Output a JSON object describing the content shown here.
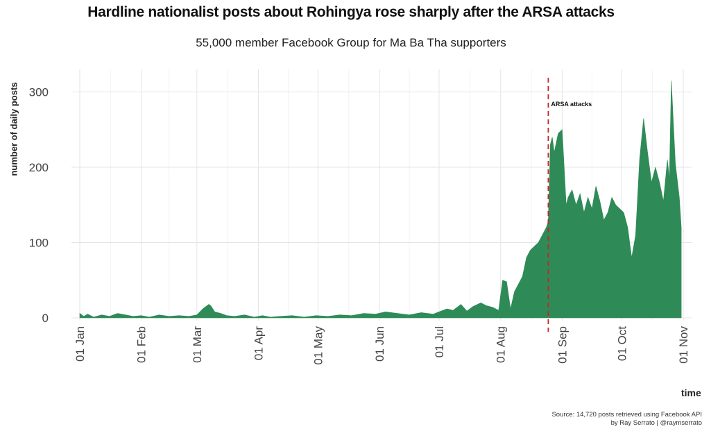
{
  "chart_data": {
    "type": "area",
    "title": "Hardline nationalist posts about Rohingya rose sharply after the ARSA attacks",
    "subtitle": "55,000 member Facebook Group for Ma Ba Tha supporters",
    "xlabel": "time",
    "ylabel": "number of daily posts",
    "caption_line1": "Source: 14,720 posts retrieved using Facebook API",
    "caption_line2": "by Ray Serrato | @raymserrato",
    "xlim": [
      "2017-01-01",
      "2017-11-01"
    ],
    "ylim": [
      0,
      330
    ],
    "grid": true,
    "fill_color": "#2e8b57",
    "annotation_color": "#cc2222",
    "y_ticks": [
      0,
      100,
      200,
      300
    ],
    "x_ticks": [
      {
        "date": "2017-01-01",
        "label": "01 Jan"
      },
      {
        "date": "2017-02-01",
        "label": "01 Feb"
      },
      {
        "date": "2017-03-01",
        "label": "01 Mar"
      },
      {
        "date": "2017-04-01",
        "label": "01 Apr"
      },
      {
        "date": "2017-05-01",
        "label": "01 May"
      },
      {
        "date": "2017-06-01",
        "label": "01 Jun"
      },
      {
        "date": "2017-07-01",
        "label": "01 Jul"
      },
      {
        "date": "2017-08-01",
        "label": "01 Aug"
      },
      {
        "date": "2017-09-01",
        "label": "01 Sep"
      },
      {
        "date": "2017-10-01",
        "label": "01 Oct"
      },
      {
        "date": "2017-11-01",
        "label": "01 Nov"
      }
    ],
    "annotation": {
      "date": "2017-08-25",
      "label": "ARSA attacks"
    },
    "series": [
      {
        "x": [
          "2017-01-01",
          "2017-01-03",
          "2017-01-05",
          "2017-01-08",
          "2017-01-12",
          "2017-01-16",
          "2017-01-20",
          "2017-01-24",
          "2017-01-28",
          "2017-02-01",
          "2017-02-05",
          "2017-02-10",
          "2017-02-15",
          "2017-02-20",
          "2017-02-25",
          "2017-03-01",
          "2017-03-04",
          "2017-03-07",
          "2017-03-08",
          "2017-03-10",
          "2017-03-13",
          "2017-03-16",
          "2017-03-20",
          "2017-03-25",
          "2017-03-30",
          "2017-04-03",
          "2017-04-07",
          "2017-04-12",
          "2017-04-18",
          "2017-04-24",
          "2017-04-30",
          "2017-05-06",
          "2017-05-12",
          "2017-05-18",
          "2017-05-24",
          "2017-05-30",
          "2017-06-04",
          "2017-06-10",
          "2017-06-16",
          "2017-06-22",
          "2017-06-28",
          "2017-07-01",
          "2017-07-05",
          "2017-07-08",
          "2017-07-12",
          "2017-07-15",
          "2017-07-18",
          "2017-07-22",
          "2017-07-25",
          "2017-07-28",
          "2017-07-31",
          "2017-08-02",
          "2017-08-04",
          "2017-08-06",
          "2017-08-08",
          "2017-08-10",
          "2017-08-12",
          "2017-08-14",
          "2017-08-16",
          "2017-08-18",
          "2017-08-20",
          "2017-08-22",
          "2017-08-24",
          "2017-08-25",
          "2017-08-26",
          "2017-08-27",
          "2017-08-28",
          "2017-08-30",
          "2017-09-01",
          "2017-09-03",
          "2017-09-04",
          "2017-09-06",
          "2017-09-08",
          "2017-09-10",
          "2017-09-12",
          "2017-09-14",
          "2017-09-16",
          "2017-09-18",
          "2017-09-20",
          "2017-09-22",
          "2017-09-24",
          "2017-09-26",
          "2017-09-28",
          "2017-09-30",
          "2017-10-02",
          "2017-10-04",
          "2017-10-06",
          "2017-10-08",
          "2017-10-10",
          "2017-10-12",
          "2017-10-14",
          "2017-10-16",
          "2017-10-18",
          "2017-10-20",
          "2017-10-22",
          "2017-10-24",
          "2017-10-25",
          "2017-10-26",
          "2017-10-28",
          "2017-10-30",
          "2017-10-31"
        ],
        "y": [
          6,
          2,
          5,
          1,
          4,
          2,
          6,
          4,
          2,
          3,
          1,
          4,
          2,
          3,
          2,
          4,
          12,
          18,
          16,
          8,
          6,
          3,
          2,
          4,
          1,
          3,
          1,
          2,
          3,
          1,
          3,
          2,
          4,
          3,
          6,
          5,
          8,
          6,
          4,
          7,
          5,
          8,
          12,
          10,
          18,
          9,
          15,
          20,
          16,
          14,
          10,
          50,
          48,
          12,
          35,
          45,
          55,
          80,
          90,
          95,
          100,
          110,
          120,
          128,
          230,
          240,
          220,
          245,
          250,
          150,
          160,
          170,
          150,
          165,
          140,
          160,
          145,
          175,
          155,
          130,
          140,
          160,
          150,
          145,
          140,
          120,
          80,
          110,
          210,
          265,
          220,
          180,
          200,
          180,
          155,
          210,
          185,
          315,
          205,
          160,
          120
        ]
      }
    ]
  }
}
